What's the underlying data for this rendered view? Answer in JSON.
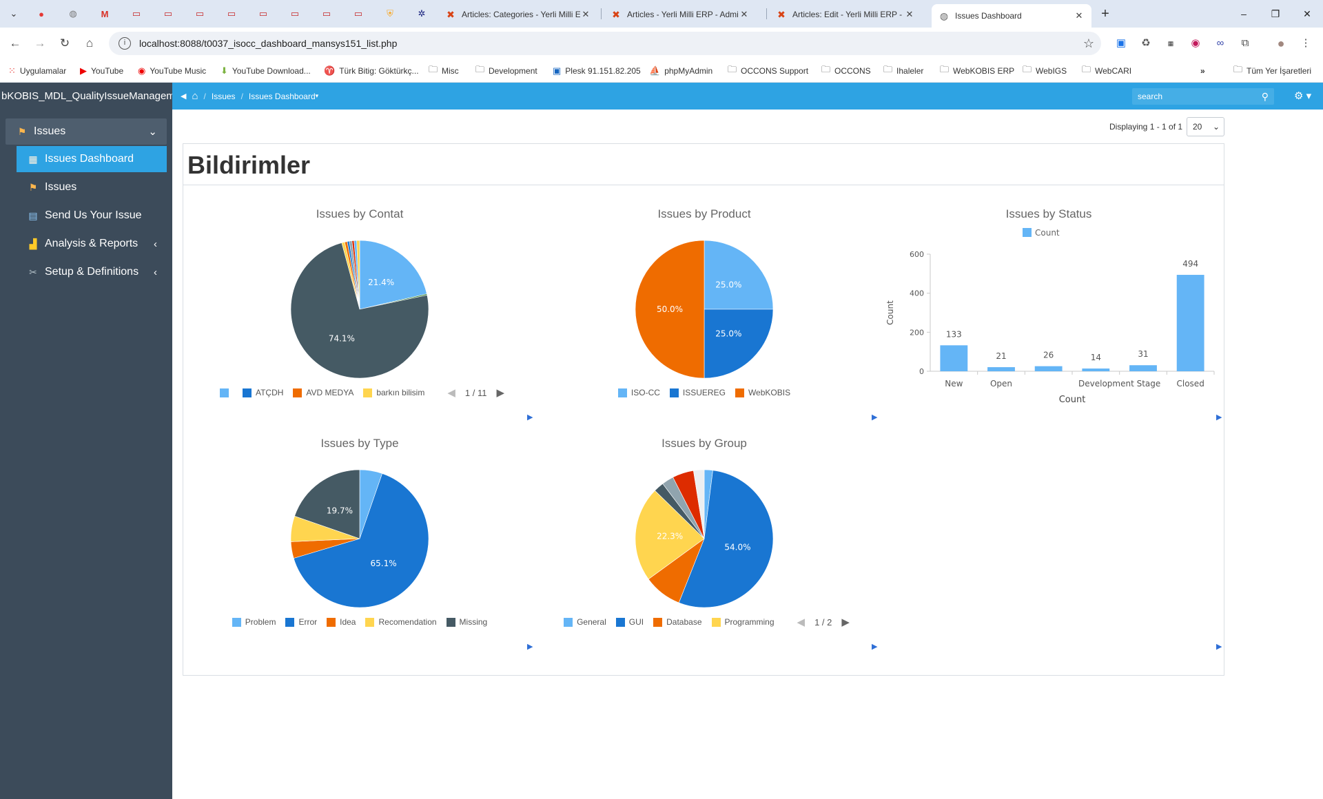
{
  "browser": {
    "tabs": [
      {
        "title": "Articles: Categories - Yerli Milli E"
      },
      {
        "title": "Articles - Yerli Milli ERP - Admin"
      },
      {
        "title": "Articles: Edit - Yerli Milli ERP - A"
      },
      {
        "title": "Issues Dashboard"
      }
    ],
    "url": "localhost:8088/t0037_isocc_dashboard_mansys151_list.php",
    "bookmarks": [
      "Uygulamalar",
      "YouTube",
      "YouTube Music",
      "YouTube Download...",
      "Türk Bitig: Göktürkç...",
      "Misc",
      "Development",
      "Plesk 91.151.82.205",
      "phpMyAdmin",
      "OCCONS Support",
      "OCCONS",
      "Ihaleler",
      "WebKOBIS ERP",
      "WebIGS",
      "WebCARI"
    ],
    "all_bookmarks": "Tüm Yer İşaretleri"
  },
  "header": {
    "brand": "bKOBIS_MDL_QualityIssueManagem",
    "breadcrumb": [
      "Issues",
      "Issues Dashboard"
    ],
    "search_placeholder": "search"
  },
  "sidebar": {
    "items": [
      {
        "label": "Issues"
      },
      {
        "label": "Issues Dashboard"
      },
      {
        "label": "Issues"
      },
      {
        "label": "Send Us Your Issue"
      },
      {
        "label": "Analysis & Reports"
      },
      {
        "label": "Setup & Definitions"
      }
    ]
  },
  "main": {
    "displaying": "Displaying 1 - 1 of 1",
    "page_size": "20",
    "title": "Bildirimler"
  },
  "colors": {
    "lightblue": "#64b5f6",
    "blue": "#1976d2",
    "orange": "#ef6c00",
    "yellow": "#ffd54f",
    "slate": "#455a64",
    "red": "#dd2c00",
    "grey": "#90a4ae"
  },
  "chart_data": [
    {
      "type": "pie",
      "title": "Issues by Contat",
      "legend": [
        "",
        "ATÇDH",
        "AVD MEDYA",
        "barkın bilisim"
      ],
      "legend_colors": [
        "#64b5f6",
        "#1976d2",
        "#ef6c00",
        "#ffd54f"
      ],
      "pager": "1 / 11",
      "slices": [
        {
          "value": 21.4,
          "label": "21.4%",
          "color": "#64b5f6"
        },
        {
          "value": 0.3,
          "label": "",
          "color": "#2e7d32"
        },
        {
          "value": 74.1,
          "label": "74.1%",
          "color": "#455a64"
        },
        {
          "value": 0.7,
          "label": "",
          "color": "#ffd54f"
        },
        {
          "value": 0.6,
          "label": "",
          "color": "#ef6c00"
        },
        {
          "value": 0.5,
          "label": "",
          "color": "#1976d2"
        },
        {
          "value": 0.6,
          "label": "",
          "color": "#90a4ae"
        },
        {
          "value": 0.5,
          "label": "",
          "color": "#dd2c00"
        },
        {
          "value": 0.6,
          "label": "",
          "color": "#64b5f6"
        },
        {
          "value": 0.7,
          "label": "",
          "color": "#ffd54f"
        }
      ]
    },
    {
      "type": "pie",
      "title": "Issues by Product",
      "legend": [
        "ISO-CC",
        "ISSUEREG",
        "WebKOBIS"
      ],
      "legend_colors": [
        "#64b5f6",
        "#1976d2",
        "#ef6c00"
      ],
      "slices": [
        {
          "value": 25.0,
          "label": "25.0%",
          "color": "#64b5f6"
        },
        {
          "value": 25.0,
          "label": "25.0%",
          "color": "#1976d2"
        },
        {
          "value": 50.0,
          "label": "50.0%",
          "color": "#ef6c00"
        }
      ]
    },
    {
      "type": "bar",
      "title": "Issues by Status",
      "legend": [
        "Count"
      ],
      "ylabel": "Count",
      "xlabel": "Count",
      "categories": [
        "New",
        "Open",
        "",
        "Development Stage",
        "",
        "Closed"
      ],
      "values": [
        133,
        21,
        26,
        14,
        31,
        494
      ],
      "yticks": [
        0,
        200,
        400,
        600
      ],
      "ylim": [
        0,
        600
      ],
      "color": "#64b5f6"
    },
    {
      "type": "pie",
      "title": "Issues by Type",
      "legend": [
        "Problem",
        "Error",
        "Idea",
        "Recomendation",
        "Missing"
      ],
      "legend_colors": [
        "#64b5f6",
        "#1976d2",
        "#ef6c00",
        "#ffd54f",
        "#455a64"
      ],
      "slices": [
        {
          "value": 5.3,
          "label": "",
          "color": "#64b5f6"
        },
        {
          "value": 65.1,
          "label": "65.1%",
          "color": "#1976d2"
        },
        {
          "value": 3.9,
          "label": "",
          "color": "#ef6c00"
        },
        {
          "value": 6.0,
          "label": "",
          "color": "#ffd54f"
        },
        {
          "value": 19.7,
          "label": "19.7%",
          "color": "#455a64"
        }
      ]
    },
    {
      "type": "pie",
      "title": "Issues by Group",
      "legend": [
        "General",
        "GUI",
        "Database",
        "Programming"
      ],
      "legend_colors": [
        "#64b5f6",
        "#1976d2",
        "#ef6c00",
        "#ffd54f"
      ],
      "pager": "1 / 2",
      "slices": [
        {
          "value": 2.0,
          "label": "",
          "color": "#64b5f6"
        },
        {
          "value": 54.0,
          "label": "54.0%",
          "color": "#1976d2"
        },
        {
          "value": 9.0,
          "label": "",
          "color": "#ef6c00"
        },
        {
          "value": 22.3,
          "label": "22.3%",
          "color": "#ffd54f"
        },
        {
          "value": 2.4,
          "label": "",
          "color": "#455a64"
        },
        {
          "value": 2.8,
          "label": "",
          "color": "#90a4ae"
        },
        {
          "value": 5.0,
          "label": "",
          "color": "#dd2c00"
        },
        {
          "value": 2.5,
          "label": "",
          "color": "#eceff1"
        }
      ]
    }
  ]
}
